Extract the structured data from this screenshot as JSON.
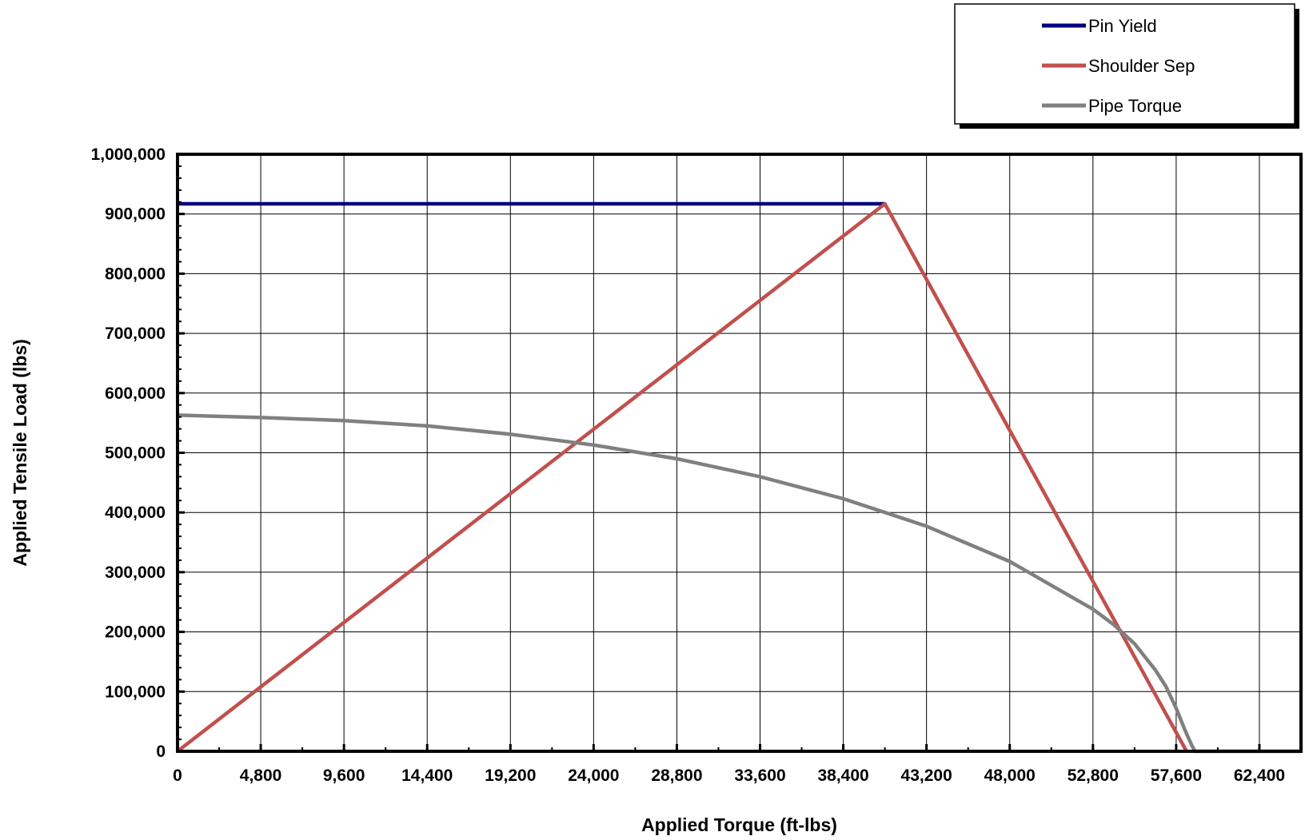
{
  "chart_data": {
    "type": "line",
    "title": "",
    "xlabel": "Applied Torque (ft-lbs)",
    "ylabel": "Applied Tensile Load (lbs)",
    "xlim": [
      0,
      64800
    ],
    "ylim": [
      0,
      1000000
    ],
    "x_ticks": [
      0,
      4800,
      9600,
      14400,
      19200,
      24000,
      28800,
      33600,
      38400,
      43200,
      48000,
      52800,
      57600,
      62400
    ],
    "x_tick_labels": [
      "0",
      "4,800",
      "9,600",
      "14,400",
      "19,200",
      "24,000",
      "28,800",
      "33,600",
      "38,400",
      "43,200",
      "48,000",
      "52,800",
      "57,600",
      "62,400"
    ],
    "y_ticks": [
      0,
      100000,
      200000,
      300000,
      400000,
      500000,
      600000,
      700000,
      800000,
      900000,
      1000000
    ],
    "y_tick_labels": [
      "0",
      "100,000",
      "200,000",
      "300,000",
      "400,000",
      "500,000",
      "600,000",
      "700,000",
      "800,000",
      "900,000",
      "1,000,000"
    ],
    "grid": true,
    "legend_position": "top-right",
    "series": [
      {
        "name": "Pin Yield",
        "color": "#000080",
        "x": [
          0,
          40800
        ],
        "y": [
          917000,
          917000
        ]
      },
      {
        "name": "Shoulder Sep",
        "color": "#c0504d",
        "x": [
          0,
          40800,
          58200
        ],
        "y": [
          0,
          917000,
          0
        ]
      },
      {
        "name": "Pipe Torque",
        "color": "#808080",
        "x": [
          0,
          4800,
          9600,
          14400,
          19200,
          24000,
          28800,
          33600,
          38400,
          43200,
          48000,
          52800,
          54000,
          55200,
          56400,
          57000,
          57600,
          58100,
          58500,
          58650,
          58700,
          60000,
          62400,
          64800
        ],
        "y": [
          563000,
          559000,
          554000,
          545000,
          531000,
          513000,
          490000,
          460000,
          423000,
          377000,
          318000,
          238000,
          212000,
          180000,
          136000,
          109000,
          72000,
          36000,
          10000,
          2000,
          0,
          0,
          0,
          0
        ]
      }
    ]
  }
}
